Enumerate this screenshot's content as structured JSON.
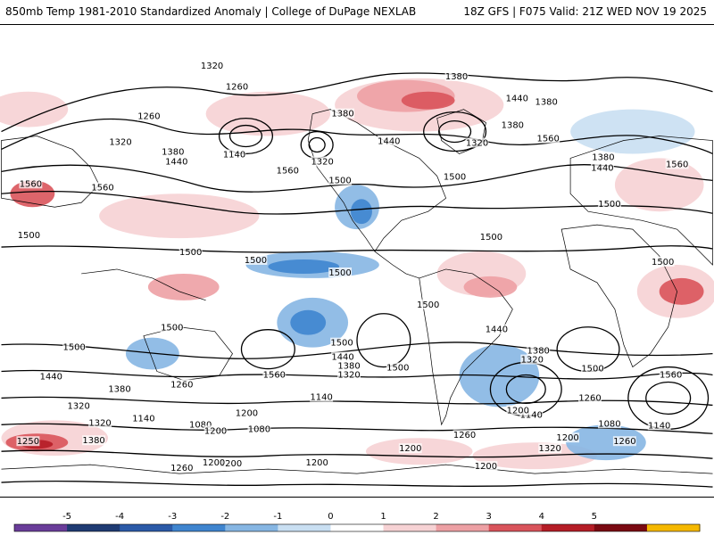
{
  "header": {
    "title_left": "850mb Temp 1981-2010 Standardized Anomaly | College of DuPage NEXLAB",
    "title_right": "18Z GFS | F075 Valid: 21Z WED NOV 19 2025"
  },
  "colorbar": {
    "ticks": [
      "-5",
      "-4",
      "-3",
      "-2",
      "-1",
      "0",
      "1",
      "2",
      "3",
      "4",
      "5"
    ],
    "colors": [
      "#6a3d9a",
      "#1f3b73",
      "#2b5aa8",
      "#3f85cf",
      "#86b6e3",
      "#c9dff2",
      "#ffffff",
      "#f6d2d4",
      "#eda0a4",
      "#d9545b",
      "#b51d26",
      "#7a0a12",
      "#f5b800"
    ]
  },
  "map": {
    "contour_labels": [
      {
        "text": "1320"
      },
      {
        "text": "1260"
      },
      {
        "text": "1260"
      },
      {
        "text": "1320"
      },
      {
        "text": "1380"
      },
      {
        "text": "1440"
      },
      {
        "text": "1140"
      },
      {
        "text": "1320"
      },
      {
        "text": "1380"
      },
      {
        "text": "1440"
      },
      {
        "text": "1560"
      },
      {
        "text": "1500"
      },
      {
        "text": "1560"
      },
      {
        "text": "1560"
      },
      {
        "text": "1500"
      },
      {
        "text": "1380"
      },
      {
        "text": "1320"
      },
      {
        "text": "1380"
      },
      {
        "text": "1440"
      },
      {
        "text": "1380"
      },
      {
        "text": "1560"
      },
      {
        "text": "1380"
      },
      {
        "text": "1440"
      },
      {
        "text": "1560"
      },
      {
        "text": "1500"
      },
      {
        "text": "1500"
      },
      {
        "text": "1500"
      },
      {
        "text": "1500"
      },
      {
        "text": "1500"
      },
      {
        "text": "1500"
      },
      {
        "text": "1500"
      },
      {
        "text": "1500"
      },
      {
        "text": "1500"
      },
      {
        "text": "1500"
      },
      {
        "text": "1500"
      },
      {
        "text": "1440"
      },
      {
        "text": "1380"
      },
      {
        "text": "1320"
      },
      {
        "text": "1500"
      },
      {
        "text": "1560"
      },
      {
        "text": "1500"
      },
      {
        "text": "1440"
      },
      {
        "text": "1380"
      },
      {
        "text": "1320"
      },
      {
        "text": "1560"
      },
      {
        "text": "1440"
      },
      {
        "text": "1380"
      },
      {
        "text": "1260"
      },
      {
        "text": "1320"
      },
      {
        "text": "1140"
      },
      {
        "text": "1080"
      },
      {
        "text": "1200"
      },
      {
        "text": "1200"
      },
      {
        "text": "1080"
      },
      {
        "text": "1200"
      },
      {
        "text": "1140"
      },
      {
        "text": "1320"
      },
      {
        "text": "1200"
      },
      {
        "text": "1140"
      },
      {
        "text": "1260"
      },
      {
        "text": "1200"
      },
      {
        "text": "1080"
      },
      {
        "text": "1140"
      },
      {
        "text": "1260"
      },
      {
        "text": "1250"
      },
      {
        "text": "1380"
      },
      {
        "text": "1320"
      },
      {
        "text": "1260"
      },
      {
        "text": "1200"
      },
      {
        "text": "1200"
      },
      {
        "text": "1260"
      },
      {
        "text": "1200"
      },
      {
        "text": "1200"
      }
    ]
  }
}
